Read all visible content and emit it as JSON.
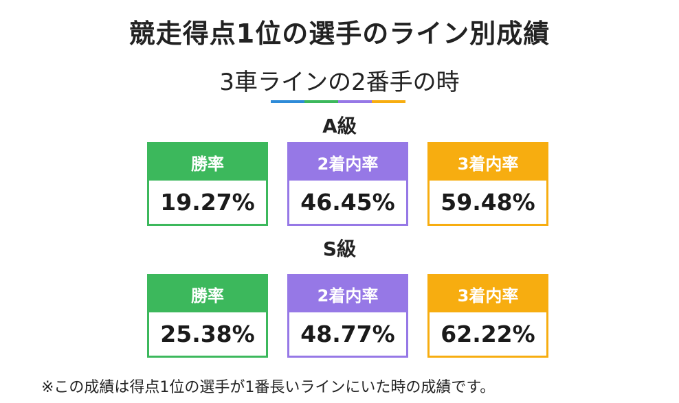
{
  "title": "競走得点1位の選手のライン別成績",
  "subtitle": "3車ラインの2番手の時",
  "colors": {
    "green": "#3cb85c",
    "purple": "#9678e6",
    "orange": "#f7ad10",
    "blue": "#2e8bd8",
    "text": "#222222"
  },
  "deco_colors": [
    "#2e8bd8",
    "#3cb85c",
    "#9678e6",
    "#f7ad10"
  ],
  "sections": [
    {
      "label": "A級",
      "cards": [
        {
          "header": "勝率",
          "value": "19.27%",
          "color": "#3cb85c"
        },
        {
          "header": "2着内率",
          "value": "46.45%",
          "color": "#9678e6"
        },
        {
          "header": "3着内率",
          "value": "59.48%",
          "color": "#f7ad10"
        }
      ]
    },
    {
      "label": "S級",
      "cards": [
        {
          "header": "勝率",
          "value": "25.38%",
          "color": "#3cb85c"
        },
        {
          "header": "2着内率",
          "value": "48.77%",
          "color": "#9678e6"
        },
        {
          "header": "3着内率",
          "value": "62.22%",
          "color": "#f7ad10"
        }
      ]
    }
  ],
  "footnote": "※この成績は得点1位の選手が1番長いラインにいた時の成績です。"
}
